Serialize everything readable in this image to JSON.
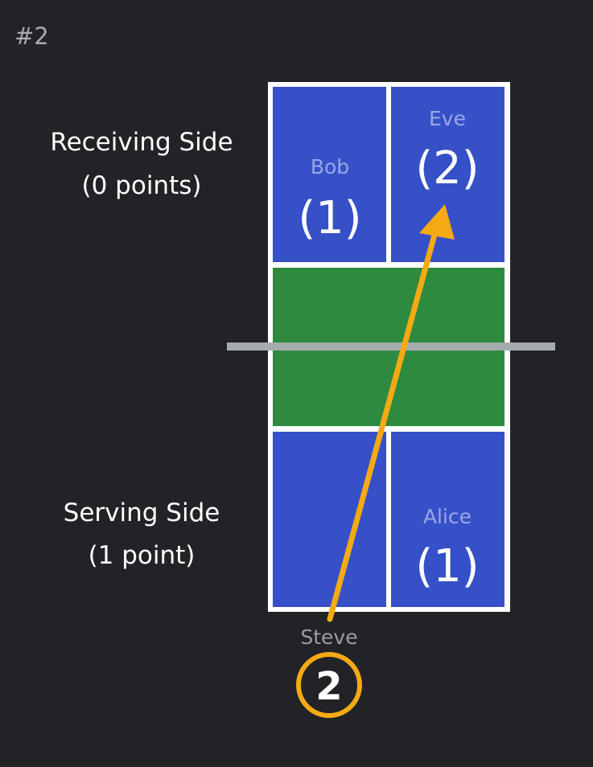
{
  "diagram_number": "#2",
  "receiving_side": {
    "title": "Receiving Side",
    "points": "(0 points)"
  },
  "serving_side": {
    "title": "Serving Side",
    "points": "(1 point)"
  },
  "players": {
    "bob": {
      "name": "Bob",
      "position": "(1)"
    },
    "eve": {
      "name": "Eve",
      "position": "(2)"
    },
    "alice": {
      "name": "Alice",
      "position": "(1)"
    }
  },
  "server": {
    "name": "Steve",
    "server_number": "2"
  },
  "colors": {
    "background": "#222327",
    "service_box": "#3650c8",
    "kitchen": "#2e8a3e",
    "court_lines": "#ffffff",
    "net": "#a6abae",
    "serve_arrow": "#f5aa14"
  }
}
